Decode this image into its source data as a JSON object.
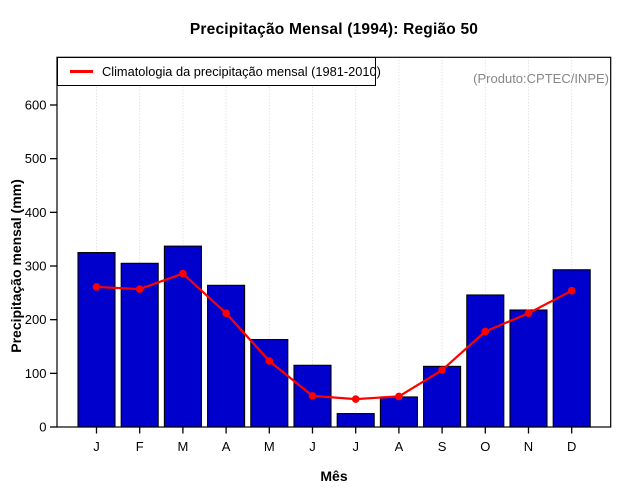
{
  "chart_data": {
    "type": "bar",
    "title": "Precipitação Mensal (1994): Região 50",
    "xlabel": "Mês",
    "ylabel": "Precipitação mensal (mm)",
    "categories": [
      "J",
      "F",
      "M",
      "A",
      "M",
      "J",
      "J",
      "A",
      "S",
      "O",
      "N",
      "D"
    ],
    "series": [
      {
        "name": "Precipitação mensal (1994)",
        "type": "bar",
        "color": "#0000CC",
        "values": [
          325,
          305,
          337,
          264,
          163,
          115,
          25,
          56,
          113,
          246,
          218,
          293
        ]
      },
      {
        "name": "Climatologia da precipitação mensal (1981-2010)",
        "type": "line",
        "color": "#FF0000",
        "values": [
          261,
          257,
          286,
          212,
          123,
          58,
          52,
          57,
          106,
          178,
          212,
          254
        ]
      }
    ],
    "ylim": [
      0,
      689
    ],
    "yticks": [
      0,
      100,
      200,
      300,
      400,
      500,
      600
    ],
    "grid": "vertical-dotted",
    "gridline_color": "#D8D8D8",
    "axis_color": "#000000",
    "legend_position": "top-left",
    "annotation": "(Produto:CPTEC/INPE)",
    "annotation_color": "#878787"
  }
}
